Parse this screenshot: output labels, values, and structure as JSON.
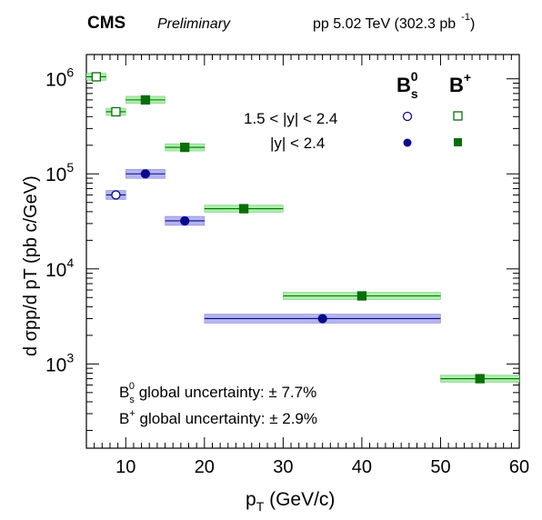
{
  "header": {
    "experiment": "CMS",
    "status": "Preliminary",
    "energy_label": "pp 5.02 TeV (302.3 pb",
    "lumi_exponent": "-1",
    "lumi_close": ")"
  },
  "legend": {
    "bs_symbol": "B",
    "bs_sub": "s",
    "bs_sup": "0",
    "bplus_symbol": "B",
    "bplus_sup": "+",
    "row1_label": "1.5 < |y| < 2.4",
    "row2_label": "|y| < 2.4"
  },
  "uncertainty": {
    "bs_symbol": "B",
    "bs_sub": "s",
    "bs_sup": "0",
    "bs_text": " global uncertainty: ± 7.7%",
    "bplus_symbol": "B",
    "bplus_sup": "+",
    "bplus_text": " global uncertainty: ± 2.9%"
  },
  "axes": {
    "xlabel_main": "p",
    "xlabel_sub": "T",
    "xlabel_unit": " (GeV/c)",
    "ylabel_text": "d σpp/d pT (pb c/GeV)",
    "x_ticks": [
      "10",
      "20",
      "30",
      "40",
      "50",
      "60"
    ],
    "y_tick_bases": [
      "10",
      "10",
      "10",
      "10"
    ],
    "y_tick_exps": [
      "6",
      "5",
      "4",
      "3"
    ]
  },
  "chart_data": {
    "type": "scatter",
    "x_label": "pT (GeV/c)",
    "y_label": "d σpp/d pT (pb c/GeV)",
    "xlim": [
      5,
      60
    ],
    "ylim": [
      130,
      1800000
    ],
    "y_scale": "log",
    "grid": false,
    "legend_placement": "top-right",
    "colors": {
      "bs_marker": "#0a0a8c",
      "bs_band": "#b4b4f0",
      "bplus_marker": "#0a6e0a",
      "bplus_band": "#a8f0a8"
    },
    "series": [
      {
        "name": "B+ 1.5 < |y| < 2.4",
        "marker": "open-square",
        "points": [
          {
            "x": 6.25,
            "xlow": 5,
            "xhigh": 7.5,
            "y": 1050000
          },
          {
            "x": 8.75,
            "xlow": 7.5,
            "xhigh": 10,
            "y": 450000
          }
        ]
      },
      {
        "name": "Bs0 1.5 < |y| < 2.4",
        "marker": "open-circle",
        "points": [
          {
            "x": 8.75,
            "xlow": 7.5,
            "xhigh": 10,
            "y": 60000
          }
        ]
      },
      {
        "name": "Bs0 |y| < 2.4",
        "marker": "filled-circle",
        "points": [
          {
            "x": 12.5,
            "xlow": 10,
            "xhigh": 15,
            "y": 100000
          },
          {
            "x": 17.5,
            "xlow": 15,
            "xhigh": 20,
            "y": 32000
          },
          {
            "x": 35,
            "xlow": 20,
            "xhigh": 50,
            "y": 3000
          }
        ]
      },
      {
        "name": "B+ |y| < 2.4",
        "marker": "filled-square",
        "points": [
          {
            "x": 12.5,
            "xlow": 10,
            "xhigh": 15,
            "y": 600000
          },
          {
            "x": 17.5,
            "xlow": 15,
            "xhigh": 20,
            "y": 190000
          },
          {
            "x": 25,
            "xlow": 20,
            "xhigh": 30,
            "y": 43000
          },
          {
            "x": 40,
            "xlow": 30,
            "xhigh": 50,
            "y": 5200
          },
          {
            "x": 55,
            "xlow": 50,
            "xhigh": 60,
            "y": 700
          }
        ]
      }
    ]
  }
}
